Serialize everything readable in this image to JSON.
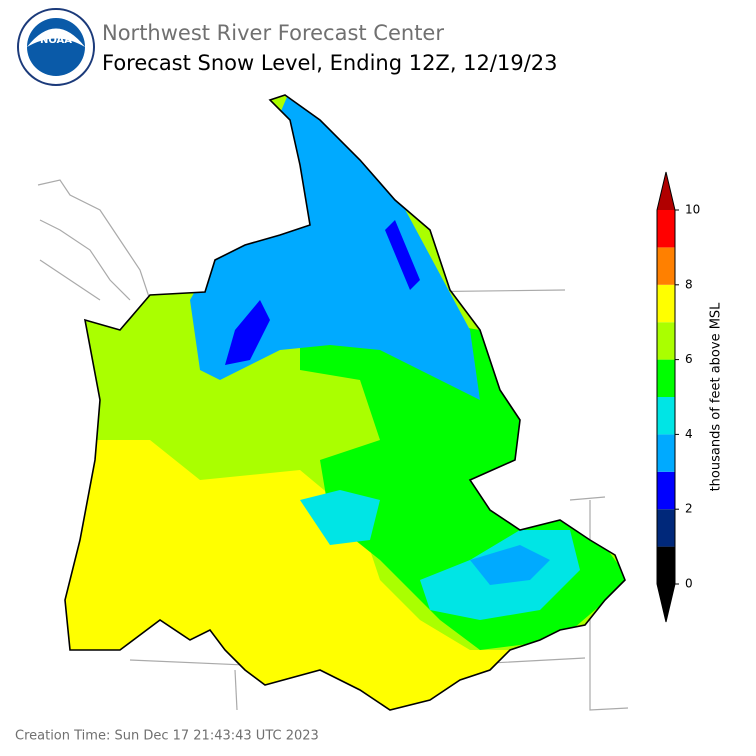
{
  "header": {
    "org": "Northwest River Forecast Center",
    "title": "Forecast Snow Level, Ending 12Z, 12/19/23"
  },
  "colorbar": {
    "label": "thousands of feet above MSL",
    "levels": [
      0,
      1,
      2,
      3,
      4,
      5,
      6,
      7,
      8,
      9,
      10
    ],
    "ticks": [
      0,
      2,
      4,
      6,
      8,
      10
    ],
    "colors": [
      "#000000",
      "#00287a",
      "#0000ff",
      "#00aaff",
      "#00e5e5",
      "#00ff00",
      "#aaff00",
      "#ffff00",
      "#ff8000",
      "#ff0000"
    ],
    "under_color": "#000000",
    "over_color": "#b00000"
  },
  "footer": {
    "creation_time": "Creation Time: Sun Dec 17 21:43:43 UTC 2023"
  }
}
